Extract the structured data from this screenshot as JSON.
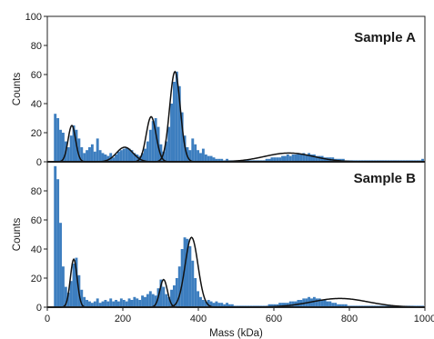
{
  "chart_data": [
    {
      "type": "bar",
      "title": "Sample A",
      "xlabel": "Mass (kDa)",
      "ylabel": "Counts",
      "xlim": [
        0,
        1000
      ],
      "ylim": [
        0,
        100
      ],
      "yticks": [
        "100",
        "80",
        "60",
        "40",
        "20",
        "0"
      ],
      "bin_width": 7,
      "bar_color": "#3d7ebf",
      "fit_color": "#111111",
      "histogram": {
        "x": [
          21,
          28,
          35,
          42,
          49,
          56,
          63,
          70,
          77,
          84,
          91,
          98,
          105,
          112,
          119,
          126,
          133,
          140,
          147,
          154,
          161,
          168,
          175,
          182,
          189,
          196,
          203,
          210,
          217,
          224,
          231,
          238,
          245,
          252,
          259,
          266,
          273,
          280,
          287,
          294,
          301,
          308,
          315,
          322,
          329,
          336,
          343,
          350,
          357,
          364,
          371,
          378,
          385,
          392,
          399,
          406,
          413,
          420,
          427,
          434,
          441,
          448,
          455,
          462,
          469,
          476,
          483,
          490,
          497,
          504,
          511,
          518,
          525,
          532,
          539,
          546,
          553,
          560,
          567,
          574,
          581,
          588,
          595,
          602,
          609,
          616,
          623,
          630,
          637,
          644,
          651,
          658,
          665,
          672,
          679,
          686,
          693,
          700,
          707,
          714,
          721,
          728,
          735,
          742,
          749,
          756,
          763,
          770,
          777,
          784,
          791,
          798,
          805,
          812,
          819,
          826,
          833,
          840,
          847,
          854,
          861,
          868,
          875,
          882,
          889,
          896,
          903,
          910,
          917,
          924,
          931,
          938,
          945,
          952,
          959,
          966,
          973,
          980,
          987,
          994
        ],
        "counts": [
          33,
          30,
          22,
          20,
          14,
          10,
          18,
          25,
          22,
          16,
          10,
          6,
          8,
          10,
          12,
          7,
          16,
          8,
          6,
          5,
          4,
          6,
          3,
          5,
          7,
          8,
          9,
          10,
          9,
          8,
          6,
          5,
          4,
          6,
          9,
          14,
          22,
          28,
          30,
          24,
          12,
          7,
          14,
          24,
          40,
          55,
          62,
          52,
          34,
          18,
          10,
          8,
          16,
          12,
          8,
          6,
          9,
          5,
          4,
          4,
          3,
          2,
          2,
          2,
          1,
          2,
          1,
          1,
          1,
          1,
          1,
          1,
          1,
          1,
          1,
          1,
          1,
          1,
          1,
          1,
          2,
          2,
          3,
          3,
          3,
          3,
          4,
          4,
          5,
          4,
          5,
          5,
          6,
          5,
          6,
          5,
          6,
          5,
          5,
          4,
          4,
          4,
          3,
          3,
          3,
          3,
          2,
          2,
          2,
          2,
          1,
          1,
          1,
          1,
          1,
          1,
          1,
          1,
          1,
          1,
          1,
          1,
          1,
          1,
          1,
          1,
          1,
          1,
          1,
          1,
          1,
          1,
          1,
          1,
          1,
          1,
          1,
          1,
          1,
          2
        ]
      },
      "fits": [
        {
          "center": 65,
          "amplitude": 25,
          "sigma": 10
        },
        {
          "center": 205,
          "amplitude": 10,
          "sigma": 22
        },
        {
          "center": 275,
          "amplitude": 31,
          "sigma": 13
        },
        {
          "center": 338,
          "amplitude": 62,
          "sigma": 14
        },
        {
          "center": 640,
          "amplitude": 6,
          "sigma": 65
        }
      ]
    },
    {
      "type": "bar",
      "title": "Sample B",
      "xlabel": "Mass (kDa)",
      "ylabel": "Counts",
      "xlim": [
        0,
        1000
      ],
      "ylim": [
        0,
        100
      ],
      "yticks": [
        "80",
        "60",
        "40",
        "20",
        "0"
      ],
      "xticks": [
        "0",
        "200",
        "400",
        "600",
        "800",
        "1000"
      ],
      "bin_width": 7,
      "bar_color": "#3d7ebf",
      "fit_color": "#111111",
      "histogram": {
        "x": [
          21,
          28,
          35,
          42,
          49,
          56,
          63,
          70,
          77,
          84,
          91,
          98,
          105,
          112,
          119,
          126,
          133,
          140,
          147,
          154,
          161,
          168,
          175,
          182,
          189,
          196,
          203,
          210,
          217,
          224,
          231,
          238,
          245,
          252,
          259,
          266,
          273,
          280,
          287,
          294,
          301,
          308,
          315,
          322,
          329,
          336,
          343,
          350,
          357,
          364,
          371,
          378,
          385,
          392,
          399,
          406,
          413,
          420,
          427,
          434,
          441,
          448,
          455,
          462,
          469,
          476,
          483,
          490,
          497,
          504,
          511,
          518,
          525,
          532,
          539,
          546,
          553,
          560,
          567,
          574,
          581,
          588,
          595,
          602,
          609,
          616,
          623,
          630,
          637,
          644,
          651,
          658,
          665,
          672,
          679,
          686,
          693,
          700,
          707,
          714,
          721,
          728,
          735,
          742,
          749,
          756,
          763,
          770,
          777,
          784,
          791,
          798,
          805,
          812,
          819,
          826,
          833,
          840,
          847,
          854,
          861,
          868,
          875,
          882,
          889,
          896,
          903,
          910,
          917,
          924,
          931,
          938,
          945,
          952,
          959,
          966,
          973,
          980,
          987,
          994
        ],
        "counts": [
          97,
          88,
          58,
          28,
          14,
          10,
          18,
          30,
          34,
          22,
          12,
          7,
          5,
          4,
          3,
          4,
          6,
          3,
          4,
          5,
          4,
          6,
          4,
          5,
          4,
          6,
          5,
          4,
          6,
          5,
          7,
          6,
          5,
          8,
          7,
          9,
          11,
          9,
          8,
          13,
          19,
          14,
          9,
          7,
          12,
          15,
          20,
          28,
          40,
          48,
          47,
          42,
          32,
          20,
          11,
          7,
          5,
          4,
          5,
          4,
          3,
          4,
          3,
          3,
          2,
          3,
          2,
          2,
          1,
          1,
          1,
          1,
          1,
          1,
          1,
          1,
          1,
          1,
          1,
          1,
          1,
          2,
          2,
          2,
          2,
          3,
          3,
          3,
          3,
          4,
          4,
          4,
          5,
          5,
          6,
          6,
          7,
          6,
          7,
          6,
          6,
          5,
          5,
          4,
          4,
          3,
          3,
          2,
          2,
          2,
          2,
          1,
          1,
          1,
          1,
          1,
          1,
          1,
          1,
          1,
          1,
          1,
          1,
          1,
          1,
          1,
          1,
          1,
          1,
          1,
          1,
          1,
          1,
          1,
          1,
          1,
          1,
          1,
          1,
          1
        ]
      },
      "fits": [
        {
          "center": 70,
          "amplitude": 33,
          "sigma": 9
        },
        {
          "center": 308,
          "amplitude": 19,
          "sigma": 10
        },
        {
          "center": 382,
          "amplitude": 48,
          "sigma": 17
        },
        {
          "center": 775,
          "amplitude": 6,
          "sigma": 75
        }
      ]
    }
  ]
}
